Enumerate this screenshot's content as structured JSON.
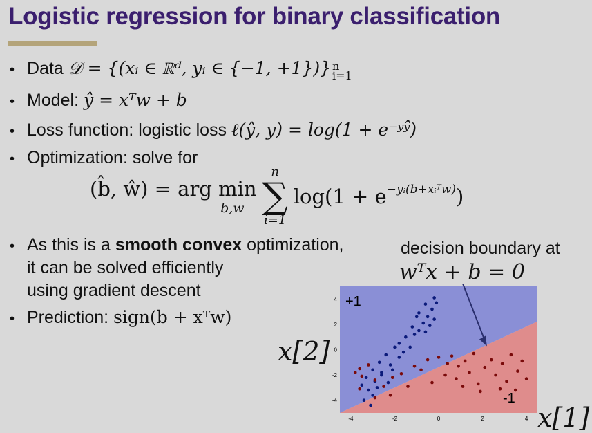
{
  "title": "Logistic regression for binary classification",
  "bullets": {
    "data": {
      "label": "Data",
      "math": "𝒟 = {(xᵢ ∈ ℝᵈ, yᵢ ∈ {−1, +1})}",
      "sup": "n",
      "sub": "i=1"
    },
    "model": {
      "label": "Model:",
      "math": "ŷ = xᵀw + b"
    },
    "loss": {
      "label": "Loss function: logistic loss",
      "math": "ℓ(ŷ, y) = log(1 + e⁻ʸʸ̂)"
    },
    "optimization": {
      "label": "Optimization: solve for"
    },
    "smooth_line1_pre": "As this is a",
    "smooth_bold": "smooth convex",
    "smooth_line1_post": "optimization,",
    "smooth_line2": "it can be solved efficiently",
    "smooth_line3": "using gradient descent",
    "prediction": {
      "label": "Prediction:",
      "math": "sign(b + xᵀw)"
    }
  },
  "formula": {
    "lhs": "(b̂, ŵ) = arg min",
    "under_min": "b,w",
    "sum_top": "n",
    "sum_bottom": "i=1",
    "rhs": "log(1 + e",
    "rhs_exp": "−yᵢ(b+xᵢᵀw)",
    "rhs_close": ")"
  },
  "annotation": {
    "line1": "decision boundary at",
    "line2": "wᵀx + b = 0"
  },
  "plot": {
    "class_pos_label": "+1",
    "class_neg_label": "-1",
    "x_axis_label": "x[1]",
    "y_axis_label": "x[2]",
    "colors": {
      "pos_region": "#8a8fd6",
      "neg_region": "#df8c8c",
      "pos_point": "#0b1a7a",
      "neg_point": "#7a0a0a"
    }
  },
  "chart_data": {
    "type": "scatter",
    "xlabel": "x[1]",
    "ylabel": "x[2]",
    "xlim": [
      -4.5,
      4.5
    ],
    "ylim": [
      -5,
      5
    ],
    "x_ticks": [
      -4,
      -2,
      0,
      2,
      4
    ],
    "y_ticks": [
      -4,
      -2,
      0,
      2,
      4
    ],
    "decision_boundary": {
      "slope": 0.85,
      "intercept": -1.6
    },
    "series": [
      {
        "name": "+1",
        "points": [
          [
            -0.2,
            4.1
          ],
          [
            -0.1,
            3.7
          ],
          [
            -0.3,
            3.2
          ],
          [
            -0.6,
            3.6
          ],
          [
            -0.9,
            2.9
          ],
          [
            -0.5,
            2.6
          ],
          [
            -0.2,
            2.4
          ],
          [
            -0.7,
            2.1
          ],
          [
            -1.0,
            2.6
          ],
          [
            -0.4,
            1.9
          ],
          [
            -0.9,
            1.5
          ],
          [
            -1.2,
            1.8
          ],
          [
            -1.5,
            1.0
          ],
          [
            -1.8,
            0.5
          ],
          [
            -2.0,
            0.2
          ],
          [
            -1.3,
            0.2
          ],
          [
            -2.4,
            -0.4
          ],
          [
            -1.8,
            -0.6
          ],
          [
            -2.7,
            -1.0
          ],
          [
            -2.2,
            -1.2
          ],
          [
            -3.0,
            -1.6
          ],
          [
            -2.6,
            -1.8
          ],
          [
            -3.3,
            -2.2
          ],
          [
            -2.9,
            -2.5
          ],
          [
            -3.5,
            -2.8
          ],
          [
            -3.2,
            -3.2
          ],
          [
            -3.0,
            -3.6
          ],
          [
            -3.4,
            -4.0
          ],
          [
            -2.6,
            -2.0
          ],
          [
            -2.1,
            -1.6
          ],
          [
            -1.6,
            -0.2
          ],
          [
            -1.1,
            1.2
          ],
          [
            -0.6,
            1.4
          ],
          [
            -2.3,
            -2.6
          ],
          [
            -2.8,
            -3.0
          ],
          [
            -3.1,
            -4.4
          ]
        ]
      },
      {
        "name": "-1",
        "points": [
          [
            -3.8,
            -1.8
          ],
          [
            -3.5,
            -2.1
          ],
          [
            -3.6,
            -1.5
          ],
          [
            -3.2,
            -1.2
          ],
          [
            -2.9,
            -2.4
          ],
          [
            -2.5,
            -2.9
          ],
          [
            -2.1,
            -2.2
          ],
          [
            -1.7,
            -1.9
          ],
          [
            -1.1,
            -1.3
          ],
          [
            -0.8,
            -1.6
          ],
          [
            -0.5,
            -0.8
          ],
          [
            0.0,
            -0.6
          ],
          [
            0.4,
            -1.1
          ],
          [
            0.6,
            -0.5
          ],
          [
            0.9,
            -1.3
          ],
          [
            0.3,
            -2.0
          ],
          [
            0.8,
            -2.3
          ],
          [
            1.2,
            -0.9
          ],
          [
            1.4,
            -1.8
          ],
          [
            1.6,
            -0.3
          ],
          [
            1.8,
            -2.7
          ],
          [
            2.1,
            -1.4
          ],
          [
            2.4,
            -0.8
          ],
          [
            2.6,
            -2.0
          ],
          [
            2.9,
            -1.1
          ],
          [
            3.1,
            -2.5
          ],
          [
            3.3,
            -0.4
          ],
          [
            3.6,
            -1.7
          ],
          [
            3.8,
            -0.9
          ],
          [
            4.0,
            -2.3
          ],
          [
            3.5,
            -3.2
          ],
          [
            2.8,
            -3.1
          ],
          [
            1.9,
            -3.3
          ],
          [
            1.1,
            -2.9
          ],
          [
            -0.3,
            -2.6
          ],
          [
            -1.4,
            -2.9
          ],
          [
            -2.2,
            -3.6
          ],
          [
            -2.9,
            -3.8
          ],
          [
            -3.6,
            -3.1
          ]
        ]
      }
    ]
  }
}
